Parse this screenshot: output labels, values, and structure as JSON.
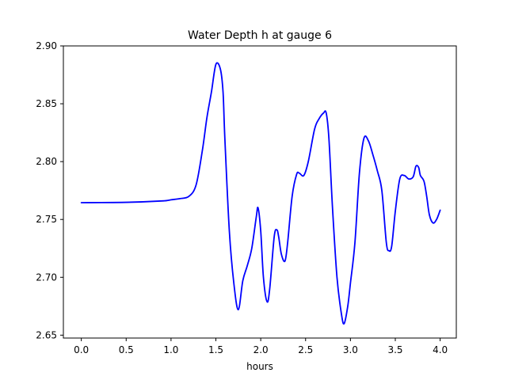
{
  "chart_data": {
    "type": "line",
    "title": "Water Depth h at gauge 6",
    "xlabel": "hours",
    "ylabel": "",
    "xlim": [
      -0.2,
      4.18
    ],
    "ylim": [
      2.6475,
      2.9
    ],
    "x_ticks": [
      0.0,
      0.5,
      1.0,
      1.5,
      2.0,
      2.5,
      3.0,
      3.5,
      4.0
    ],
    "x_tick_labels": [
      "0.0",
      "0.5",
      "1.0",
      "1.5",
      "2.0",
      "2.5",
      "3.0",
      "3.5",
      "4.0"
    ],
    "y_ticks": [
      2.65,
      2.7,
      2.75,
      2.8,
      2.85,
      2.9
    ],
    "y_tick_labels": [
      "2.65",
      "2.70",
      "2.75",
      "2.80",
      "2.85",
      "2.90"
    ],
    "grid": false,
    "line_color": "#0000ff",
    "series": [
      {
        "x": [
          0.0,
          0.5,
          0.9,
          1.0,
          1.1,
          1.2,
          1.28,
          1.35,
          1.4,
          1.45,
          1.5,
          1.55,
          1.58,
          1.6,
          1.65,
          1.7,
          1.75,
          1.8,
          1.85,
          1.9,
          1.95,
          1.97,
          2.0,
          2.03,
          2.07,
          2.1,
          2.15,
          2.18,
          2.2,
          2.23,
          2.27,
          2.3,
          2.35,
          2.4,
          2.43,
          2.48,
          2.53,
          2.6,
          2.65,
          2.7,
          2.73,
          2.76,
          2.8,
          2.85,
          2.9,
          2.93,
          2.97,
          3.0,
          3.05,
          3.1,
          3.15,
          3.2,
          3.25,
          3.3,
          3.35,
          3.4,
          3.43,
          3.46,
          3.5,
          3.55,
          3.6,
          3.65,
          3.7,
          3.73,
          3.76,
          3.78,
          3.82,
          3.85,
          3.88,
          3.92,
          3.96,
          4.0
        ],
        "y": [
          2.7645,
          2.7648,
          2.766,
          2.767,
          2.768,
          2.77,
          2.78,
          2.81,
          2.838,
          2.86,
          2.884,
          2.88,
          2.86,
          2.82,
          2.74,
          2.695,
          2.672,
          2.697,
          2.71,
          2.725,
          2.752,
          2.76,
          2.74,
          2.7,
          2.679,
          2.69,
          2.735,
          2.741,
          2.735,
          2.72,
          2.714,
          2.73,
          2.77,
          2.789,
          2.79,
          2.788,
          2.8,
          2.828,
          2.837,
          2.842,
          2.842,
          2.82,
          2.76,
          2.7,
          2.668,
          2.66,
          2.675,
          2.695,
          2.73,
          2.79,
          2.82,
          2.818,
          2.806,
          2.792,
          2.775,
          2.73,
          2.723,
          2.727,
          2.757,
          2.785,
          2.788,
          2.785,
          2.787,
          2.796,
          2.795,
          2.788,
          2.783,
          2.77,
          2.754,
          2.747,
          2.75,
          2.758
        ]
      }
    ]
  }
}
